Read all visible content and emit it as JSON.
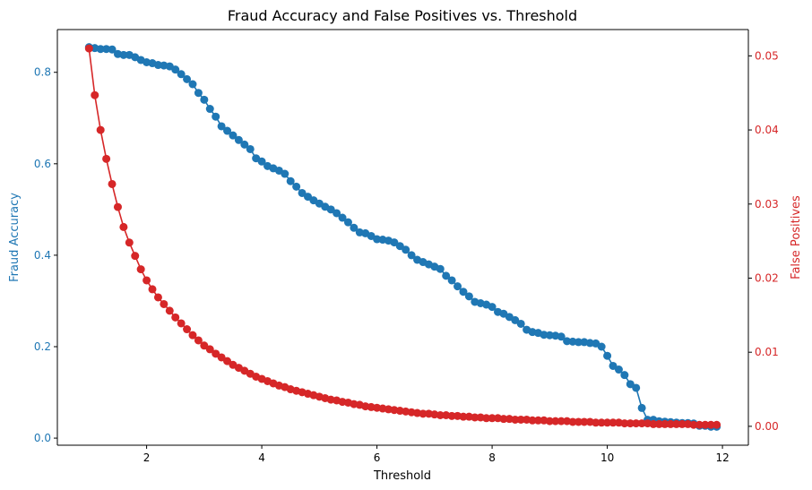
{
  "chart_data": {
    "type": "line",
    "title": "Fraud Accuracy and False Positives vs. Threshold",
    "xlabel": "Threshold",
    "xlim": [
      0.45,
      12.45
    ],
    "xticks": [
      2,
      4,
      6,
      8,
      10,
      12
    ],
    "grid": false,
    "axes": {
      "left": {
        "label": "Fraud Accuracy",
        "color": "#1f77b4",
        "ylim": [
          -0.0155,
          0.8935
        ],
        "ticks": [
          0.0,
          0.2,
          0.4,
          0.6,
          0.8
        ],
        "tick_labels": [
          "0.0",
          "0.2",
          "0.4",
          "0.6",
          "0.8"
        ]
      },
      "right": {
        "label": "False Positives",
        "color": "#d62728",
        "ylim": [
          -0.00255,
          0.05355
        ],
        "ticks": [
          0.0,
          0.01,
          0.02,
          0.03,
          0.04,
          0.05
        ],
        "tick_labels": [
          "0.00",
          "0.01",
          "0.02",
          "0.03",
          "0.04",
          "0.05"
        ]
      }
    },
    "x": [
      1.0,
      1.1,
      1.2,
      1.3,
      1.4,
      1.5,
      1.6,
      1.7,
      1.8,
      1.9,
      2.0,
      2.1,
      2.2,
      2.3,
      2.4,
      2.5,
      2.6,
      2.7,
      2.8,
      2.9,
      3.0,
      3.1,
      3.2,
      3.3,
      3.4,
      3.5,
      3.6,
      3.7,
      3.8,
      3.9,
      4.0,
      4.1,
      4.2,
      4.3,
      4.4,
      4.5,
      4.6,
      4.7,
      4.8,
      4.9,
      5.0,
      5.1,
      5.2,
      5.3,
      5.4,
      5.5,
      5.6,
      5.7,
      5.8,
      5.9,
      6.0,
      6.1,
      6.2,
      6.3,
      6.4,
      6.5,
      6.6,
      6.7,
      6.8,
      6.9,
      7.0,
      7.1,
      7.2,
      7.3,
      7.4,
      7.5,
      7.6,
      7.7,
      7.8,
      7.9,
      8.0,
      8.1,
      8.2,
      8.3,
      8.4,
      8.5,
      8.6,
      8.7,
      8.8,
      8.9,
      9.0,
      9.1,
      9.2,
      9.3,
      9.4,
      9.5,
      9.6,
      9.7,
      9.8,
      9.9,
      10.0,
      10.1,
      10.2,
      10.3,
      10.4,
      10.5,
      10.6,
      10.7,
      10.8,
      10.9,
      11.0,
      11.1,
      11.2,
      11.3,
      11.4,
      11.5,
      11.6,
      11.7,
      11.8,
      11.9
    ],
    "series": [
      {
        "axis": "left",
        "color": "#1f77b4",
        "values": [
          0.855,
          0.853,
          0.851,
          0.851,
          0.85,
          0.84,
          0.838,
          0.838,
          0.833,
          0.827,
          0.822,
          0.82,
          0.816,
          0.815,
          0.813,
          0.806,
          0.796,
          0.785,
          0.774,
          0.755,
          0.74,
          0.72,
          0.703,
          0.682,
          0.672,
          0.662,
          0.652,
          0.642,
          0.632,
          0.612,
          0.605,
          0.595,
          0.59,
          0.585,
          0.578,
          0.562,
          0.55,
          0.536,
          0.528,
          0.52,
          0.513,
          0.506,
          0.5,
          0.492,
          0.482,
          0.472,
          0.46,
          0.45,
          0.448,
          0.442,
          0.435,
          0.434,
          0.432,
          0.428,
          0.42,
          0.412,
          0.4,
          0.39,
          0.385,
          0.38,
          0.375,
          0.37,
          0.355,
          0.345,
          0.332,
          0.32,
          0.31,
          0.298,
          0.295,
          0.292,
          0.287,
          0.276,
          0.272,
          0.265,
          0.258,
          0.25,
          0.237,
          0.232,
          0.23,
          0.226,
          0.225,
          0.224,
          0.222,
          0.212,
          0.211,
          0.21,
          0.21,
          0.208,
          0.207,
          0.2,
          0.18,
          0.158,
          0.15,
          0.138,
          0.118,
          0.11,
          0.066,
          0.04,
          0.04,
          0.037,
          0.036,
          0.035,
          0.034,
          0.033,
          0.033,
          0.032,
          0.027,
          0.027,
          0.025,
          0.025
        ]
      },
      {
        "axis": "right",
        "color": "#d62728",
        "values": [
          0.051,
          0.0447,
          0.04,
          0.0361,
          0.0327,
          0.0296,
          0.0269,
          0.0248,
          0.023,
          0.0212,
          0.0197,
          0.0185,
          0.0174,
          0.0165,
          0.0156,
          0.0147,
          0.0139,
          0.0131,
          0.0123,
          0.0116,
          0.0109,
          0.0104,
          0.0098,
          0.0093,
          0.0088,
          0.0083,
          0.0079,
          0.0075,
          0.0071,
          0.0067,
          0.0064,
          0.0061,
          0.0058,
          0.0055,
          0.0053,
          0.005,
          0.0048,
          0.0046,
          0.0044,
          0.0042,
          0.004,
          0.0038,
          0.0036,
          0.0035,
          0.0033,
          0.0032,
          0.003,
          0.0029,
          0.0027,
          0.0026,
          0.0025,
          0.0024,
          0.0023,
          0.0022,
          0.0021,
          0.002,
          0.0019,
          0.0018,
          0.0017,
          0.0017,
          0.0016,
          0.0015,
          0.0015,
          0.0014,
          0.0014,
          0.0013,
          0.0013,
          0.0012,
          0.0012,
          0.0011,
          0.0011,
          0.0011,
          0.001,
          0.001,
          0.0009,
          0.0009,
          0.0009,
          0.0008,
          0.0008,
          0.0008,
          0.0007,
          0.0007,
          0.0007,
          0.0007,
          0.0006,
          0.0006,
          0.0006,
          0.0006,
          0.0005,
          0.0005,
          0.0005,
          0.0005,
          0.0005,
          0.0004,
          0.0004,
          0.0004,
          0.0004,
          0.0004,
          0.0003,
          0.0003,
          0.0003,
          0.0003,
          0.0003,
          0.0003,
          0.0003,
          0.0002,
          0.0002,
          0.0002,
          0.0002,
          0.0002
        ]
      }
    ]
  }
}
